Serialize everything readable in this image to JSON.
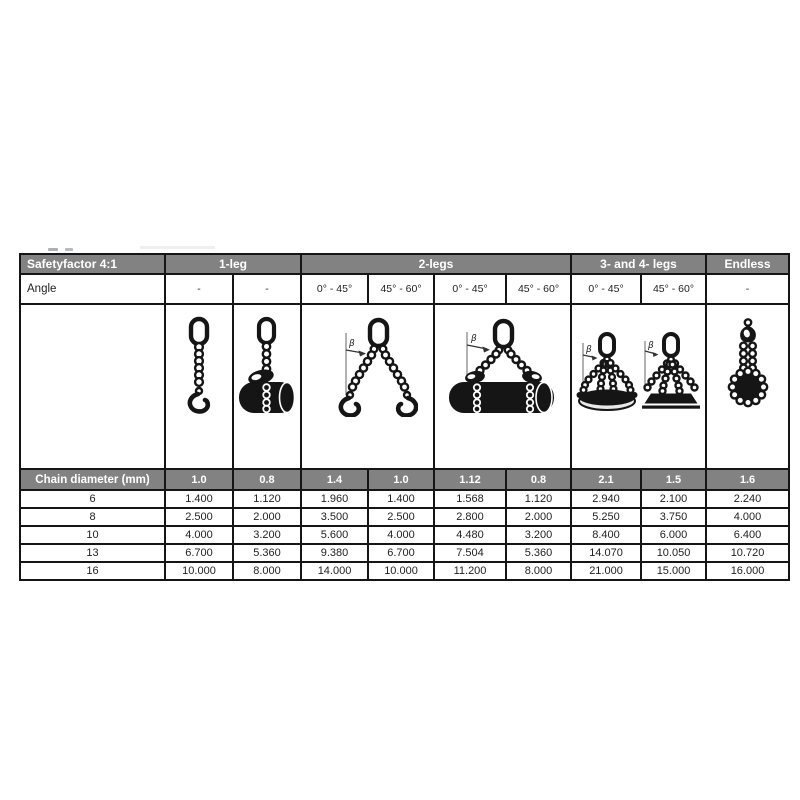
{
  "colors": {
    "header_bg": "#828282",
    "header_text": "#ffffff",
    "border": "#151515",
    "text": "#1f1f1f",
    "page_bg": "#ffffff"
  },
  "table": {
    "header_groups": [
      {
        "label": "Safetyfactor 4:1",
        "span": 1
      },
      {
        "label": "1-leg",
        "span": 2
      },
      {
        "label": "2-legs",
        "span": 4
      },
      {
        "label": "3- and 4- legs",
        "span": 2
      },
      {
        "label": "Endless",
        "span": 1
      }
    ],
    "angle_row": {
      "label": "Angle",
      "values": [
        "-",
        "-",
        "0° - 45°",
        "45° - 60°",
        "0° - 45°",
        "45° - 60°",
        "0° - 45°",
        "45° - 60°",
        "-"
      ]
    },
    "illustrations": [
      {
        "name": "one-leg-straight"
      },
      {
        "name": "one-leg-choked-around-drum"
      },
      {
        "name": "two-leg-with-hooks"
      },
      {
        "name": "two-leg-choked-around-pipe"
      },
      {
        "name": "three-four-leg-0-45"
      },
      {
        "name": "three-four-leg-45-60"
      },
      {
        "name": "endless-chain-around-drum"
      }
    ],
    "beta_label": "β",
    "factor_row": {
      "label": "Chain diameter (mm)",
      "values": [
        "1.0",
        "0.8",
        "1.4",
        "1.0",
        "1.12",
        "0.8",
        "2.1",
        "1.5",
        "1.6"
      ]
    },
    "rows": [
      {
        "diameter": "6",
        "values": [
          "1.400",
          "1.120",
          "1.960",
          "1.400",
          "1.568",
          "1.120",
          "2.940",
          "2.100",
          "2.240"
        ]
      },
      {
        "diameter": "8",
        "values": [
          "2.500",
          "2.000",
          "3.500",
          "2.500",
          "2.800",
          "2.000",
          "5.250",
          "3.750",
          "4.000"
        ]
      },
      {
        "diameter": "10",
        "values": [
          "4.000",
          "3.200",
          "5.600",
          "4.000",
          "4.480",
          "3.200",
          "8.400",
          "6.000",
          "6.400"
        ]
      },
      {
        "diameter": "13",
        "values": [
          "6.700",
          "5.360",
          "9.380",
          "6.700",
          "7.504",
          "5.360",
          "14.070",
          "10.050",
          "10.720"
        ]
      },
      {
        "diameter": "16",
        "values": [
          "10.000",
          "8.000",
          "14.000",
          "10.000",
          "11.200",
          "8.000",
          "21.000",
          "15.000",
          "16.000"
        ]
      }
    ]
  }
}
